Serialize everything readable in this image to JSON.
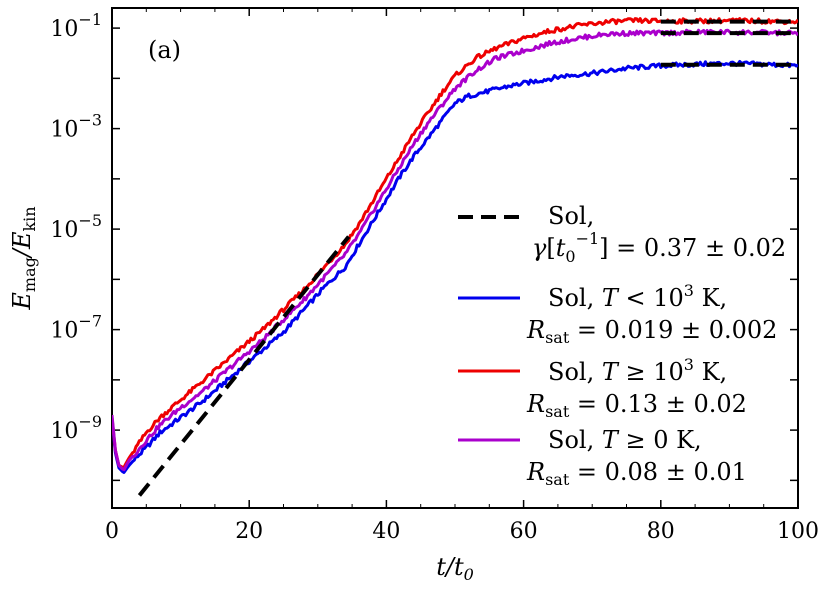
{
  "chart_data": {
    "type": "line",
    "panel_label": "(a)",
    "xlabel": "t/t0",
    "ylabel": "Emag/Ekin",
    "xlim": [
      0,
      100
    ],
    "ylim_log10": [
      -10.55,
      -0.6
    ],
    "yscale": "log",
    "grid": false,
    "legend_placement": "center-right",
    "x_ticks": [
      0,
      20,
      40,
      60,
      80,
      100
    ],
    "y_tick_exponents": [
      -9,
      -7,
      -5,
      -3,
      -1
    ],
    "series": [
      {
        "name": "Sol,  T < 10^3 K,",
        "legend_line2": "R_sat = 0.019 ± 0.002",
        "color": "#0000ee",
        "log10_values": [
          [
            0.0,
            -8.8
          ],
          [
            0.5,
            -9.45
          ],
          [
            1.0,
            -9.75
          ],
          [
            1.7,
            -9.85
          ],
          [
            2.5,
            -9.7
          ],
          [
            3.5,
            -9.55
          ],
          [
            5,
            -9.35
          ],
          [
            7,
            -9.05
          ],
          [
            10,
            -8.75
          ],
          [
            13,
            -8.45
          ],
          [
            16,
            -8.1
          ],
          [
            19,
            -7.75
          ],
          [
            22,
            -7.4
          ],
          [
            25,
            -7.05
          ],
          [
            28,
            -6.6
          ],
          [
            31,
            -6.15
          ],
          [
            34,
            -5.75
          ],
          [
            36,
            -5.3
          ],
          [
            38,
            -4.85
          ],
          [
            40,
            -4.4
          ],
          [
            42,
            -3.95
          ],
          [
            44,
            -3.55
          ],
          [
            46,
            -3.2
          ],
          [
            48,
            -2.85
          ],
          [
            50,
            -2.5
          ],
          [
            52,
            -2.35
          ],
          [
            55,
            -2.25
          ],
          [
            58,
            -2.15
          ],
          [
            62,
            -2.05
          ],
          [
            66,
            -1.95
          ],
          [
            70,
            -1.9
          ],
          [
            75,
            -1.8
          ],
          [
            80,
            -1.75
          ],
          [
            85,
            -1.72
          ],
          [
            90,
            -1.7
          ],
          [
            95,
            -1.72
          ],
          [
            100,
            -1.75
          ]
        ]
      },
      {
        "name": "Sol,  T ≥ 10^3 K,",
        "legend_line2": "R_sat = 0.13 ± 0.02",
        "color": "#ee0000",
        "log10_values": [
          [
            0.0,
            -8.75
          ],
          [
            0.5,
            -9.4
          ],
          [
            1.0,
            -9.7
          ],
          [
            1.7,
            -9.75
          ],
          [
            2.5,
            -9.55
          ],
          [
            3.5,
            -9.35
          ],
          [
            5,
            -9.05
          ],
          [
            7,
            -8.75
          ],
          [
            10,
            -8.4
          ],
          [
            13,
            -8.05
          ],
          [
            16,
            -7.7
          ],
          [
            19,
            -7.35
          ],
          [
            22,
            -7.0
          ],
          [
            25,
            -6.6
          ],
          [
            28,
            -6.2
          ],
          [
            31,
            -5.75
          ],
          [
            34,
            -5.3
          ],
          [
            36,
            -4.9
          ],
          [
            38,
            -4.45
          ],
          [
            40,
            -4.0
          ],
          [
            42,
            -3.55
          ],
          [
            44,
            -3.1
          ],
          [
            46,
            -2.7
          ],
          [
            48,
            -2.3
          ],
          [
            50,
            -1.95
          ],
          [
            53,
            -1.6
          ],
          [
            56,
            -1.4
          ],
          [
            60,
            -1.2
          ],
          [
            64,
            -1.05
          ],
          [
            68,
            -0.95
          ],
          [
            72,
            -0.88
          ],
          [
            76,
            -0.85
          ],
          [
            80,
            -0.86
          ],
          [
            85,
            -0.86
          ],
          [
            90,
            -0.85
          ],
          [
            95,
            -0.86
          ],
          [
            100,
            -0.87
          ]
        ]
      },
      {
        "name": "Sol,  T ≥ 0 K,",
        "legend_line2": "R_sat = 0.08 ± 0.01",
        "color": "#aa00cc",
        "log10_values": [
          [
            0.0,
            -8.7
          ],
          [
            0.5,
            -9.4
          ],
          [
            1.0,
            -9.7
          ],
          [
            1.7,
            -9.8
          ],
          [
            2.5,
            -9.6
          ],
          [
            3.5,
            -9.45
          ],
          [
            5,
            -9.2
          ],
          [
            7,
            -8.9
          ],
          [
            10,
            -8.55
          ],
          [
            13,
            -8.25
          ],
          [
            16,
            -7.9
          ],
          [
            19,
            -7.55
          ],
          [
            22,
            -7.2
          ],
          [
            25,
            -6.8
          ],
          [
            28,
            -6.4
          ],
          [
            31,
            -5.95
          ],
          [
            34,
            -5.5
          ],
          [
            36,
            -5.1
          ],
          [
            38,
            -4.65
          ],
          [
            40,
            -4.2
          ],
          [
            42,
            -3.75
          ],
          [
            44,
            -3.3
          ],
          [
            46,
            -2.9
          ],
          [
            48,
            -2.55
          ],
          [
            50,
            -2.2
          ],
          [
            53,
            -1.85
          ],
          [
            56,
            -1.6
          ],
          [
            60,
            -1.45
          ],
          [
            64,
            -1.3
          ],
          [
            68,
            -1.2
          ],
          [
            72,
            -1.12
          ],
          [
            76,
            -1.1
          ],
          [
            80,
            -1.1
          ],
          [
            85,
            -1.08
          ],
          [
            90,
            -1.08
          ],
          [
            95,
            -1.09
          ],
          [
            100,
            -1.1
          ]
        ]
      }
    ],
    "fit_line": {
      "name": "Sol,",
      "legend_line2": "γ[t0^-1] = 0.37 ± 0.02",
      "color": "#000000",
      "log10_start": [
        4,
        -10.3
      ],
      "log10_end": [
        34.5,
        -5.15
      ]
    },
    "saturation_lines": [
      {
        "x0": 80,
        "x1": 100,
        "log10_y": -0.87
      },
      {
        "x0": 80,
        "x1": 100,
        "log10_y": -1.1
      },
      {
        "x0": 80,
        "x1": 100,
        "log10_y": -1.73
      }
    ]
  }
}
